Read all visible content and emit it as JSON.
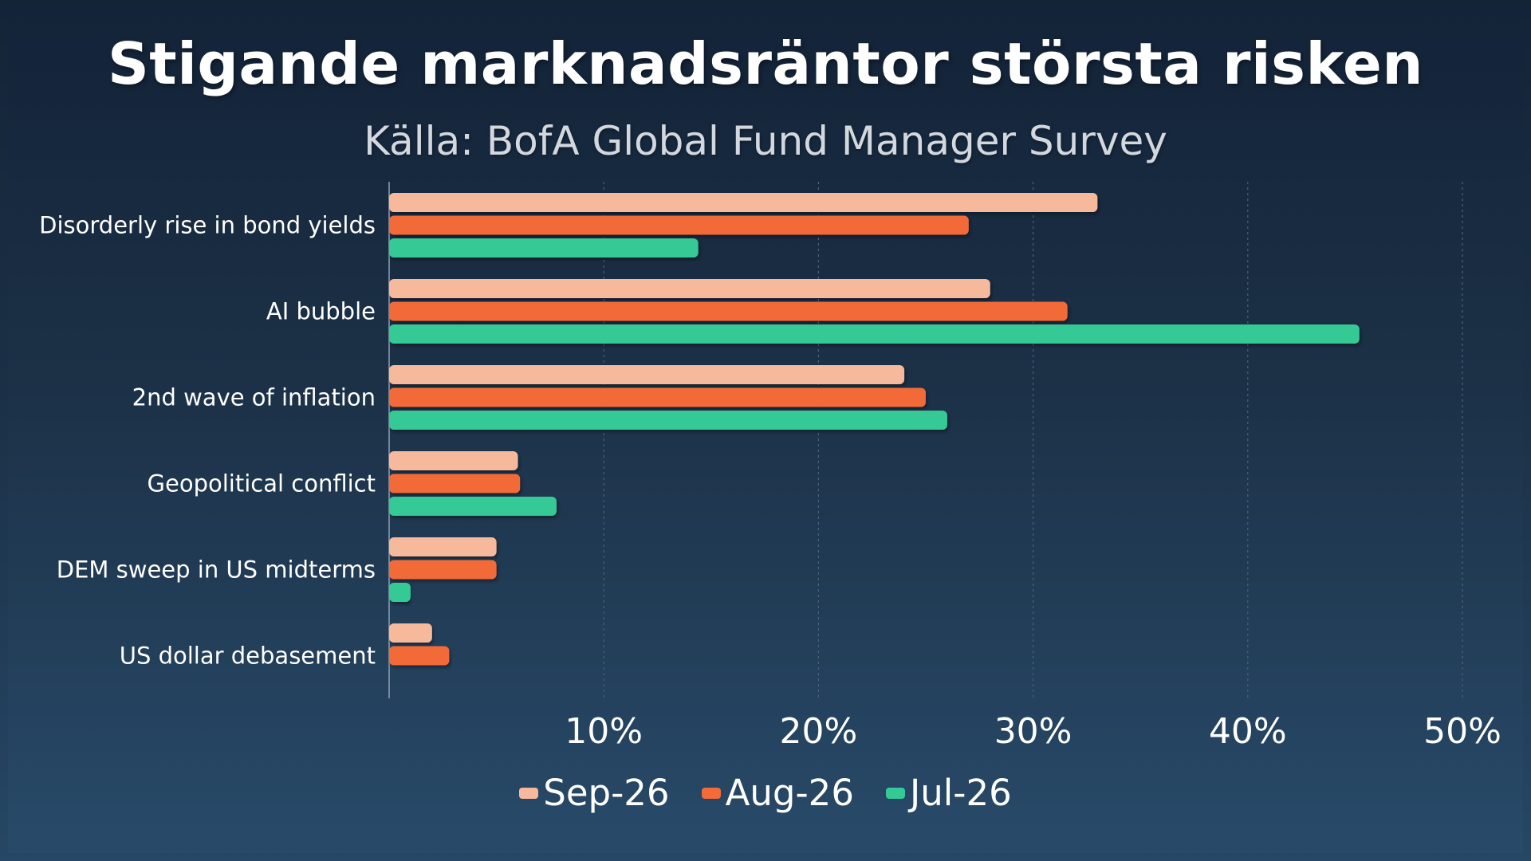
{
  "title": "Stigande marknadsräntor största risken",
  "subtitle": "Källa: BofA Global Fund Manager Survey",
  "colors": {
    "Sep-26": "#f6b99b",
    "Aug-26": "#f26b38",
    "Jul-26": "#35c996"
  },
  "chart_data": {
    "type": "bar",
    "orientation": "horizontal",
    "categories": [
      "Disorderly rise in bond yields",
      "AI bubble",
      "2nd wave of inflation",
      "Geopolitical conflict",
      "DEM sweep in US midterms",
      "US dollar debasement"
    ],
    "series": [
      {
        "name": "Sep-26",
        "values": [
          33,
          28,
          24,
          6,
          5,
          2
        ]
      },
      {
        "name": "Aug-26",
        "values": [
          27,
          31.6,
          25,
          6.1,
          5,
          2.8
        ]
      },
      {
        "name": "Jul-26",
        "values": [
          14.4,
          45.2,
          26,
          7.8,
          1,
          0
        ]
      }
    ],
    "x_ticks": [
      "10%",
      "20%",
      "30%",
      "40%",
      "50%"
    ],
    "xlim": [
      0,
      50
    ],
    "grid": true,
    "legend_position": "bottom"
  }
}
